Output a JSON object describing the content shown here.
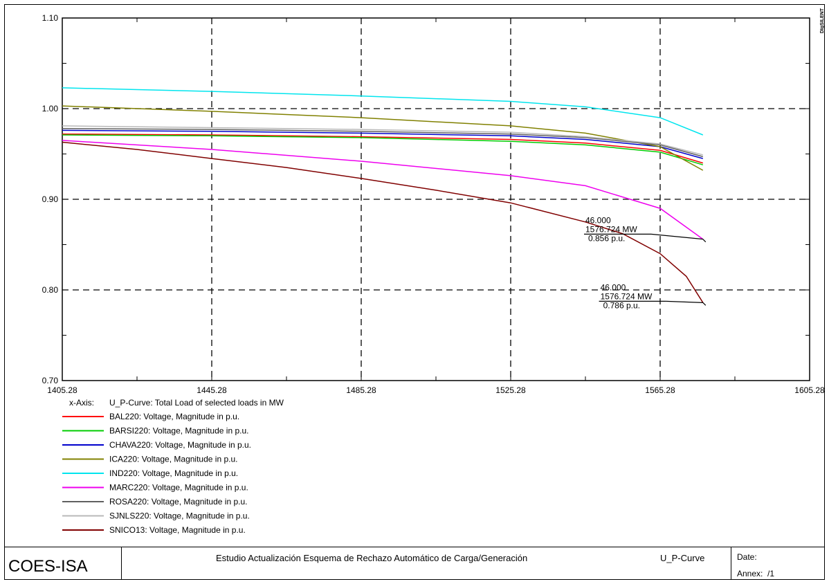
{
  "chart_data": {
    "type": "line",
    "xlim": [
      1405.28,
      1605.28
    ],
    "ylim": [
      0.7,
      1.1
    ],
    "x_ticks": [
      "1405.28",
      "1445.28",
      "1485.28",
      "1525.28",
      "1565.28",
      "1605.28"
    ],
    "y_ticks": [
      "0.70",
      "0.80",
      "0.90",
      "1.00",
      "1.10"
    ],
    "xlabel": "U_P-Curve: Total Load of selected loads in MW",
    "xaxis_prefix": "x-Axis:",
    "grid": true,
    "legend_position": "bottom-left",
    "series": [
      {
        "name": "BAL220: Voltage, Magnitude in p.u.",
        "color": "#ff0000",
        "x": [
          1405.28,
          1445.28,
          1485.28,
          1525.28,
          1545.28,
          1565.28,
          1576.724
        ],
        "y": [
          0.972,
          0.971,
          0.969,
          0.966,
          0.962,
          0.954,
          0.94
        ]
      },
      {
        "name": "BARSI220: Voltage, Magnitude in p.u.",
        "color": "#00cc00",
        "x": [
          1405.28,
          1445.28,
          1485.28,
          1525.28,
          1545.28,
          1565.28,
          1576.724
        ],
        "y": [
          0.971,
          0.97,
          0.968,
          0.964,
          0.96,
          0.952,
          0.938
        ]
      },
      {
        "name": "CHAVA220: Voltage, Magnitude in p.u.",
        "color": "#0000cc",
        "x": [
          1405.28,
          1445.28,
          1485.28,
          1525.28,
          1545.28,
          1565.28,
          1576.724
        ],
        "y": [
          0.976,
          0.975,
          0.973,
          0.97,
          0.966,
          0.958,
          0.945
        ]
      },
      {
        "name": "ICA220: Voltage, Magnitude in p.u.",
        "color": "#808000",
        "x": [
          1405.28,
          1445.28,
          1485.28,
          1525.28,
          1545.28,
          1565.28,
          1576.724
        ],
        "y": [
          1.003,
          0.997,
          0.99,
          0.981,
          0.973,
          0.958,
          0.932
        ]
      },
      {
        "name": "IND220: Voltage, Magnitude in p.u.",
        "color": "#00e5ee",
        "x": [
          1405.28,
          1445.28,
          1485.28,
          1525.28,
          1545.28,
          1565.28,
          1576.724
        ],
        "y": [
          1.023,
          1.019,
          1.014,
          1.008,
          1.002,
          0.99,
          0.971
        ]
      },
      {
        "name": "MARC220: Voltage, Magnitude in p.u.",
        "color": "#ee00ee",
        "x": [
          1405.28,
          1445.28,
          1485.28,
          1525.28,
          1545.28,
          1565.28,
          1576.724
        ],
        "y": [
          0.965,
          0.955,
          0.942,
          0.926,
          0.915,
          0.89,
          0.856
        ]
      },
      {
        "name": "ROSA220: Voltage, Magnitude in p.u.",
        "color": "#606060",
        "x": [
          1405.28,
          1445.28,
          1485.28,
          1525.28,
          1545.28,
          1565.28,
          1576.724
        ],
        "y": [
          0.978,
          0.977,
          0.975,
          0.972,
          0.968,
          0.96,
          0.947
        ]
      },
      {
        "name": "SJNLS220: Voltage, Magnitude in p.u.",
        "color": "#b8b8b8",
        "x": [
          1405.28,
          1445.28,
          1485.28,
          1525.28,
          1545.28,
          1565.28,
          1576.724
        ],
        "y": [
          0.981,
          0.979,
          0.977,
          0.974,
          0.969,
          0.961,
          0.949
        ]
      },
      {
        "name": "SNICO13: Voltage, Magnitude in p.u.",
        "color": "#800000",
        "x": [
          1405.28,
          1425.28,
          1445.28,
          1465.28,
          1485.28,
          1505.28,
          1525.28,
          1545.28,
          1555.28,
          1565.28,
          1572.28,
          1576.724
        ],
        "y": [
          0.963,
          0.955,
          0.945,
          0.935,
          0.923,
          0.91,
          0.896,
          0.875,
          0.862,
          0.84,
          0.815,
          0.786
        ]
      }
    ],
    "annotations": [
      {
        "lines": [
          "46.000",
          "1576.724 MW",
          "0.856 p.u."
        ],
        "x": 1576.724,
        "y": 0.856,
        "label_x": 1545.28,
        "label_y": 0.86
      },
      {
        "lines": [
          "46.000",
          "1576.724 MW",
          "0.786 p.u."
        ],
        "x": 1576.724,
        "y": 0.786,
        "label_x": 1549.28,
        "label_y": 0.786
      }
    ]
  },
  "brand": "DIgSILENT",
  "title_block": {
    "company": "COES-ISA",
    "title": "Estudio Actualización Esquema de Rechazo Automático de Carga/Generación",
    "page": "U_P-Curve",
    "date_label": "Date:",
    "annex_label": "Annex:",
    "annex_value": "/1"
  }
}
